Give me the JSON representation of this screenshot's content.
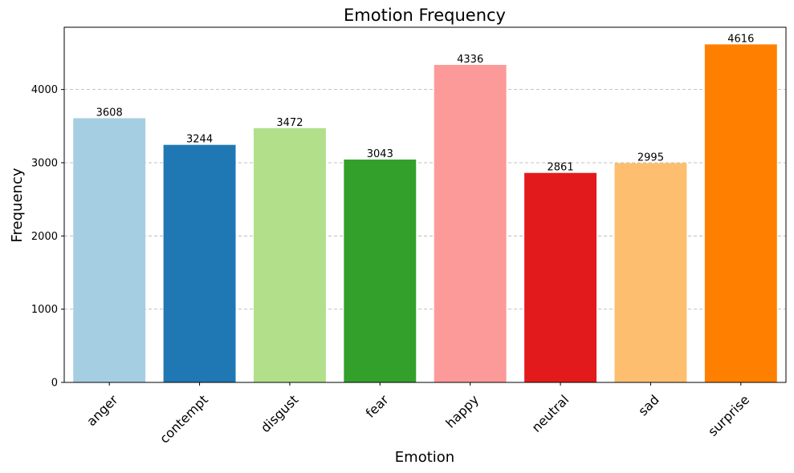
{
  "chart_data": {
    "type": "bar",
    "title": "Emotion Frequency",
    "xlabel": "Emotion",
    "ylabel": "Frequency",
    "categories": [
      "anger",
      "contempt",
      "disgust",
      "fear",
      "happy",
      "neutral",
      "sad",
      "surprise"
    ],
    "values": [
      3608,
      3244,
      3472,
      3043,
      4336,
      2861,
      2995,
      4616
    ],
    "colors": [
      "#a6cee3",
      "#1f78b4",
      "#b2df8a",
      "#33a02c",
      "#fb9a99",
      "#e31a1c",
      "#fdbf6f",
      "#ff7f00"
    ],
    "ylim": [
      0,
      4850
    ],
    "yticks": [
      0,
      1000,
      2000,
      3000,
      4000
    ],
    "grid": "y-dashed",
    "legend": "none",
    "data_labels": true,
    "xtick_rotation": 45
  }
}
